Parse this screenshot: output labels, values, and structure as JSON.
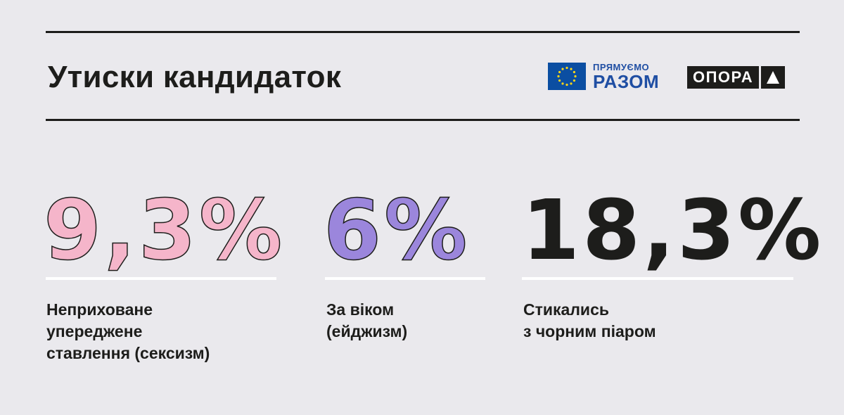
{
  "header": {
    "title": "Утиски кандидаток",
    "logos": {
      "partner": {
        "line1": "ПРЯМУЄМО",
        "line2": "РАЗОМ",
        "icon": "eu-flag-icon",
        "color": "#1f4ea3"
      },
      "brand": {
        "text": "ОПОРА",
        "icon": "triangle-icon"
      }
    }
  },
  "stats": [
    {
      "value": "9,3%",
      "label": "Неприховане\nупереджене\nставлення (сексизм)",
      "color": "#f5b5ca"
    },
    {
      "value": "6%",
      "label": "За віком\n(ейджизм)",
      "color": "#9b86dc"
    },
    {
      "value": "18,3%",
      "label": "Стикались\nз чорним піаром",
      "color": "#1d1d1b"
    }
  ],
  "colors": {
    "background": "#eae9ed",
    "ink": "#1d1d1b",
    "divider": "#ffffff"
  }
}
